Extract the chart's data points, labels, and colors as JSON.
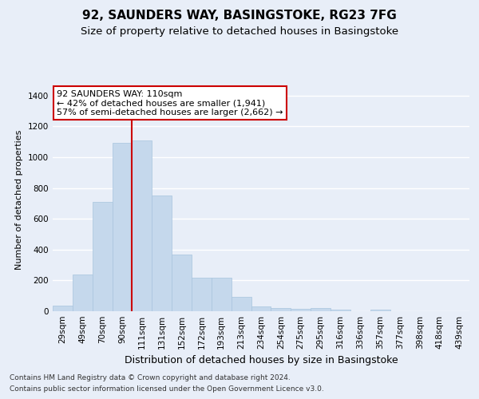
{
  "title1": "92, SAUNDERS WAY, BASINGSTOKE, RG23 7FG",
  "title2": "Size of property relative to detached houses in Basingstoke",
  "xlabel": "Distribution of detached houses by size in Basingstoke",
  "ylabel": "Number of detached properties",
  "categories": [
    "29sqm",
    "49sqm",
    "70sqm",
    "90sqm",
    "111sqm",
    "131sqm",
    "152sqm",
    "172sqm",
    "193sqm",
    "213sqm",
    "234sqm",
    "254sqm",
    "275sqm",
    "295sqm",
    "316sqm",
    "336sqm",
    "357sqm",
    "377sqm",
    "398sqm",
    "418sqm",
    "439sqm"
  ],
  "values": [
    35,
    240,
    710,
    1095,
    1110,
    750,
    370,
    220,
    220,
    95,
    30,
    20,
    15,
    20,
    10,
    0,
    10,
    0,
    0,
    0,
    0
  ],
  "bar_color": "#c5d8ec",
  "bar_edge_color": "#a8c4de",
  "vline_color": "#cc0000",
  "annotation_text": "92 SAUNDERS WAY: 110sqm\n← 42% of detached houses are smaller (1,941)\n57% of semi-detached houses are larger (2,662) →",
  "annotation_box_color": "#ffffff",
  "annotation_box_edge_color": "#cc0000",
  "ylim": [
    0,
    1450
  ],
  "yticks": [
    0,
    200,
    400,
    600,
    800,
    1000,
    1200,
    1400
  ],
  "background_color": "#e8eef8",
  "axes_background": "#e8eef8",
  "grid_color": "#ffffff",
  "footer1": "Contains HM Land Registry data © Crown copyright and database right 2024.",
  "footer2": "Contains public sector information licensed under the Open Government Licence v3.0.",
  "title1_fontsize": 11,
  "title2_fontsize": 9.5,
  "xlabel_fontsize": 9,
  "ylabel_fontsize": 8,
  "tick_fontsize": 7.5,
  "annotation_fontsize": 8,
  "footer_fontsize": 6.5
}
